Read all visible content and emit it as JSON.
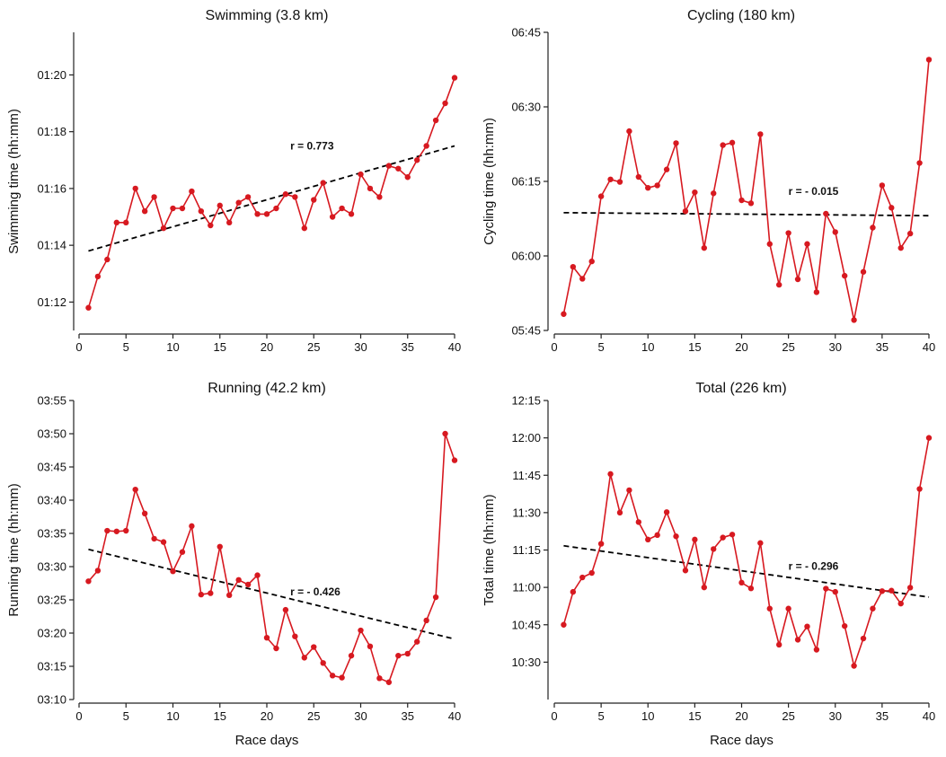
{
  "figure": {
    "x_label": "Race days",
    "colors": {
      "series": "#d71920",
      "trend": "#000000"
    }
  },
  "chart_data": [
    {
      "type": "line",
      "title": "Swimming (3.8 km)",
      "ylabel": "Swimming time (hh:mm)",
      "xlabel": "",
      "xlim": [
        0,
        40
      ],
      "xticks": [
        0,
        5,
        10,
        15,
        20,
        25,
        30,
        35,
        40
      ],
      "ylim": [
        71,
        81.5
      ],
      "yticks": [
        72,
        74,
        76,
        78,
        80
      ],
      "ytick_labels": [
        "01:12",
        "01:14",
        "01:16",
        "01:18",
        "01:20"
      ],
      "x": [
        1,
        2,
        3,
        4,
        5,
        6,
        7,
        8,
        9,
        10,
        11,
        12,
        13,
        14,
        15,
        16,
        17,
        18,
        19,
        20,
        21,
        22,
        23,
        24,
        25,
        26,
        27,
        28,
        29,
        30,
        31,
        32,
        33,
        34,
        35,
        36,
        37,
        38,
        39,
        40
      ],
      "values": [
        71.8,
        72.9,
        73.5,
        74.8,
        74.8,
        76.0,
        75.2,
        75.7,
        74.6,
        75.3,
        75.3,
        75.9,
        75.2,
        74.7,
        75.4,
        74.8,
        75.5,
        75.7,
        75.1,
        75.1,
        75.3,
        75.8,
        75.7,
        74.6,
        75.6,
        76.2,
        75.0,
        75.3,
        75.1,
        76.5,
        76.0,
        75.7,
        76.8,
        76.7,
        76.4,
        77.0,
        77.5,
        78.4,
        79.0,
        79.9
      ],
      "trend": {
        "x": [
          1,
          40
        ],
        "y": [
          73.8,
          77.5
        ]
      },
      "r_label": "r = 0.773",
      "r_pos": [
        22.5,
        77.5
      ]
    },
    {
      "type": "line",
      "title": "Cycling (180 km)",
      "ylabel": "Cycling time (hh:mm)",
      "xlabel": "",
      "xlim": [
        0,
        40
      ],
      "xticks": [
        0,
        5,
        10,
        15,
        20,
        25,
        30,
        35,
        40
      ],
      "ylim": [
        345,
        405
      ],
      "yticks": [
        345,
        360,
        375,
        390,
        405
      ],
      "ytick_labels": [
        "05:45",
        "06:00",
        "06:15",
        "06:30",
        "06:45"
      ],
      "x": [
        1,
        2,
        3,
        4,
        5,
        6,
        7,
        8,
        9,
        10,
        11,
        12,
        13,
        14,
        15,
        16,
        17,
        18,
        19,
        20,
        21,
        22,
        23,
        24,
        25,
        26,
        27,
        28,
        29,
        30,
        31,
        32,
        33,
        34,
        35,
        36,
        37,
        38,
        39,
        40
      ],
      "values": [
        348.3,
        357.8,
        355.4,
        358.9,
        372.0,
        375.4,
        374.9,
        385.1,
        375.9,
        373.7,
        374.2,
        377.4,
        382.7,
        369.0,
        372.8,
        361.6,
        372.6,
        382.3,
        382.8,
        371.2,
        370.6,
        384.5,
        362.4,
        354.2,
        364.6,
        355.3,
        362.4,
        352.7,
        368.5,
        364.8,
        356.0,
        347.1,
        356.8,
        365.7,
        374.2,
        369.7,
        361.6,
        364.5,
        378.7,
        399.5
      ],
      "trend": {
        "x": [
          1,
          40
        ],
        "y": [
          368.7,
          368.1
        ]
      },
      "r_label": "r = - 0.015",
      "r_pos": [
        25,
        373
      ]
    },
    {
      "type": "line",
      "title": "Running (42.2 km)",
      "ylabel": "Running time (hh:mm)",
      "xlabel": "Race days",
      "xlim": [
        0,
        40
      ],
      "xticks": [
        0,
        5,
        10,
        15,
        20,
        25,
        30,
        35,
        40
      ],
      "ylim": [
        190,
        235
      ],
      "yticks": [
        190,
        195,
        200,
        205,
        210,
        215,
        220,
        225,
        230,
        235
      ],
      "ytick_labels": [
        "03:10",
        "03:15",
        "03:20",
        "03:25",
        "03:30",
        "03:35",
        "03:40",
        "03:45",
        "03:50",
        "03:55"
      ],
      "x": [
        1,
        2,
        3,
        4,
        5,
        6,
        7,
        8,
        9,
        10,
        11,
        12,
        13,
        14,
        15,
        16,
        17,
        18,
        19,
        20,
        21,
        22,
        23,
        24,
        25,
        26,
        27,
        28,
        29,
        30,
        31,
        32,
        33,
        34,
        35,
        36,
        37,
        38,
        39,
        40
      ],
      "values": [
        207.8,
        209.4,
        215.4,
        215.3,
        215.4,
        221.6,
        218.0,
        214.2,
        213.7,
        209.3,
        212.2,
        216.1,
        205.8,
        206.0,
        213.0,
        205.7,
        208.0,
        207.3,
        208.7,
        199.3,
        197.7,
        203.5,
        199.5,
        196.3,
        197.9,
        195.5,
        193.6,
        193.3,
        196.6,
        200.4,
        198.0,
        193.2,
        192.6,
        196.6,
        196.9,
        198.7,
        201.9,
        205.4,
        230.0,
        226.0
      ],
      "trend": {
        "x": [
          1,
          40
        ],
        "y": [
          212.6,
          199.1
        ]
      },
      "r_label": "r = - 0.426",
      "r_pos": [
        22.5,
        206.2
      ]
    },
    {
      "type": "line",
      "title": "Total (226 km)",
      "ylabel": "Total time (hh:mm)",
      "xlabel": "Race days",
      "xlim": [
        0,
        40
      ],
      "xticks": [
        0,
        5,
        10,
        15,
        20,
        25,
        30,
        35,
        40
      ],
      "ylim": [
        615,
        735
      ],
      "yticks": [
        630,
        645,
        660,
        675,
        690,
        705,
        720
      ],
      "ytick_labels": [
        "10:30",
        "10:45",
        "11:00",
        "11:15",
        "11:30",
        "11:45",
        "12:00"
      ],
      "ytop_label": "12:15",
      "x": [
        1,
        2,
        3,
        4,
        5,
        6,
        7,
        8,
        9,
        10,
        11,
        12,
        13,
        14,
        15,
        16,
        17,
        18,
        19,
        20,
        21,
        22,
        23,
        24,
        25,
        26,
        27,
        28,
        29,
        30,
        31,
        32,
        33,
        34,
        35,
        36,
        37,
        38,
        39,
        40
      ],
      "values": [
        645.0,
        658.2,
        664.0,
        665.8,
        677.5,
        705.5,
        690.0,
        699.0,
        686.2,
        679.2,
        681.0,
        690.2,
        680.5,
        666.8,
        679.2,
        660.0,
        675.4,
        680.0,
        681.2,
        661.9,
        659.6,
        677.8,
        651.5,
        637.0,
        651.5,
        639.0,
        644.3,
        635.0,
        659.5,
        658.2,
        644.5,
        628.5,
        639.5,
        651.5,
        658.5,
        658.7,
        653.5,
        659.9,
        699.5,
        720.0
      ],
      "trend": {
        "x": [
          1,
          40
        ],
        "y": [
          676.7,
          656.1
        ]
      },
      "r_label": "r = - 0.296",
      "r_pos": [
        25,
        668.6
      ]
    }
  ]
}
